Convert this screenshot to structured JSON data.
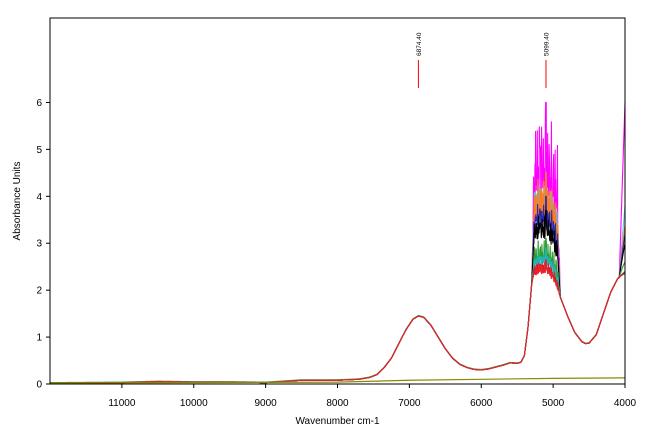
{
  "chart_data": {
    "type": "line",
    "title": "",
    "xlabel": "Wavenumber cm-1",
    "ylabel": "Absorbance Units",
    "xlim": [
      12000,
      4000
    ],
    "ylim": [
      0,
      7.8
    ],
    "x_reversed": true,
    "grid": false,
    "legend": "none",
    "x_ticks": [
      {
        "value": 11000,
        "label": "11000"
      },
      {
        "value": 10000,
        "label": "10000"
      },
      {
        "value": 9000,
        "label": "9000"
      },
      {
        "value": 8000,
        "label": "8000"
      },
      {
        "value": 7000,
        "label": "7000"
      },
      {
        "value": 6000,
        "label": "6000"
      },
      {
        "value": 5000,
        "label": "5000"
      },
      {
        "value": 4000,
        "label": "4000"
      }
    ],
    "y_ticks": [
      {
        "value": 0,
        "label": "0"
      },
      {
        "value": 1,
        "label": "1"
      },
      {
        "value": 2,
        "label": "2"
      },
      {
        "value": 3,
        "label": "3"
      },
      {
        "value": 4,
        "label": "4"
      },
      {
        "value": 5,
        "label": "5"
      },
      {
        "value": 6,
        "label": "6"
      }
    ],
    "peak_annotations": [
      {
        "x": 6874.4,
        "label": "6874.40",
        "color": "#ff0000"
      },
      {
        "x": 5099.4,
        "label": "5099.40",
        "color": "#ff0000"
      }
    ],
    "base_shape": [
      [
        12000,
        0.02
      ],
      [
        11000,
        0.03
      ],
      [
        10500,
        0.05
      ],
      [
        10000,
        0.04
      ],
      [
        9500,
        0.04
      ],
      [
        9000,
        0.03
      ],
      [
        8700,
        0.06
      ],
      [
        8500,
        0.08
      ],
      [
        8000,
        0.08
      ],
      [
        7700,
        0.1
      ],
      [
        7550,
        0.14
      ],
      [
        7450,
        0.2
      ],
      [
        7350,
        0.35
      ],
      [
        7250,
        0.55
      ],
      [
        7150,
        0.85
      ],
      [
        7050,
        1.15
      ],
      [
        6950,
        1.38
      ],
      [
        6874.4,
        1.45
      ],
      [
        6800,
        1.42
      ],
      [
        6700,
        1.25
      ],
      [
        6600,
        1.0
      ],
      [
        6500,
        0.75
      ],
      [
        6400,
        0.55
      ],
      [
        6300,
        0.42
      ],
      [
        6200,
        0.35
      ],
      [
        6100,
        0.31
      ],
      [
        6000,
        0.3
      ],
      [
        5900,
        0.32
      ],
      [
        5800,
        0.36
      ],
      [
        5700,
        0.4
      ],
      [
        5600,
        0.45
      ],
      [
        5500,
        0.44
      ],
      [
        5450,
        0.46
      ],
      [
        5400,
        0.6
      ],
      [
        5350,
        1.2
      ],
      [
        5300,
        2.1
      ],
      [
        5270,
        2.3
      ],
      [
        5200,
        2.35
      ],
      [
        5099.4,
        2.35
      ],
      [
        5050,
        2.3
      ],
      [
        5000,
        2.2
      ],
      [
        4900,
        1.85
      ],
      [
        4800,
        1.45
      ],
      [
        4700,
        1.1
      ],
      [
        4600,
        0.9
      ],
      [
        4550,
        0.86
      ],
      [
        4500,
        0.87
      ],
      [
        4400,
        1.05
      ],
      [
        4300,
        1.5
      ],
      [
        4200,
        1.95
      ],
      [
        4100,
        2.25
      ],
      [
        4000,
        2.35
      ]
    ],
    "series": [
      {
        "color": "#e8222a",
        "band_level": 2.35,
        "end_level": 2.35,
        "spike_amp": 0.3,
        "dc": 0.0
      },
      {
        "color": "#1fb5b5",
        "band_level": 2.5,
        "end_level": 2.45,
        "spike_amp": 0.4,
        "dc": 0.0
      },
      {
        "color": "#2d9a2d",
        "band_level": 2.6,
        "end_level": 2.6,
        "spike_amp": 0.5,
        "dc": 0.01
      },
      {
        "color": "#000000",
        "band_level": 3.1,
        "end_level": 3.0,
        "spike_amp": 0.6,
        "dc": 0.0
      },
      {
        "color": "#2a2aa8",
        "band_level": 3.3,
        "end_level": 3.2,
        "spike_amp": 0.7,
        "dc": 0.0
      },
      {
        "color": "#ff7a1a",
        "band_level": 3.5,
        "end_level": 3.4,
        "spike_amp": 1.0,
        "dc": 0.0
      },
      {
        "color": "#5bc8f5",
        "band_level": 3.7,
        "end_level": 3.8,
        "spike_amp": 0.8,
        "dc": 0.0
      },
      {
        "color": "#ff00ff",
        "band_level": 3.9,
        "end_level": 6.0,
        "spike_amp": 2.1,
        "dc": 0.0
      },
      {
        "color": "#c01818",
        "band_level": 2.4,
        "end_level": 2.4,
        "spike_amp": 0.2,
        "dc": 0.0
      }
    ],
    "flat_series": {
      "color": "#8a8a00",
      "points": [
        [
          12000,
          0.02
        ],
        [
          8000,
          0.04
        ],
        [
          7000,
          0.08
        ],
        [
          6000,
          0.1
        ],
        [
          5000,
          0.12
        ],
        [
          4000,
          0.13
        ]
      ]
    }
  }
}
